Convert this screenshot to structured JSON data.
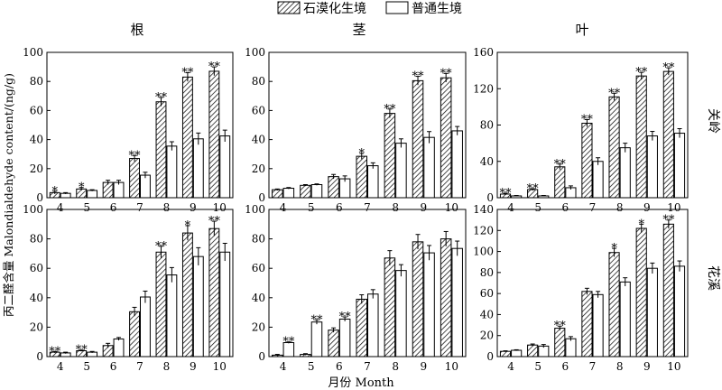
{
  "figure": {
    "ylabel": "丙二醛含量 Malondialdehyde content/(ng/g)",
    "xlabel": "月份  Month"
  },
  "legend": {
    "items": [
      {
        "label": "石漠化生境",
        "pattern": "hatched"
      },
      {
        "label": "普通生境",
        "pattern": "white"
      }
    ]
  },
  "chart_data": [
    {
      "type": "bar",
      "column": "根",
      "row": "关岭",
      "categories": [
        "4",
        "5",
        "6",
        "7",
        "8",
        "9",
        "10"
      ],
      "ylim": [
        0,
        100
      ],
      "yticks": [
        0,
        20,
        40,
        60,
        80,
        100
      ],
      "series": [
        {
          "name": "石漠化生境",
          "values": [
            3.5,
            6,
            10.5,
            27,
            66,
            83,
            87
          ],
          "errors": [
            1,
            1,
            1.5,
            2,
            3,
            3,
            3
          ]
        },
        {
          "name": "普通生境",
          "values": [
            3,
            5,
            10.5,
            15.5,
            35.5,
            40.5,
            42.5
          ],
          "errors": [
            0.5,
            0.5,
            1.5,
            2,
            3,
            4,
            4
          ]
        }
      ],
      "significance": [
        "*",
        "*",
        "",
        "**",
        "**",
        "**",
        "**"
      ]
    },
    {
      "type": "bar",
      "column": "茎",
      "row": "关岭",
      "categories": [
        "4",
        "5",
        "6",
        "7",
        "8",
        "9",
        "10"
      ],
      "ylim": [
        0,
        100
      ],
      "yticks": [
        0,
        20,
        40,
        60,
        80,
        100
      ],
      "series": [
        {
          "name": "石漠化生境",
          "values": [
            5.5,
            8.5,
            14.5,
            28.5,
            58,
            80.5,
            82.5
          ],
          "errors": [
            0.5,
            0.5,
            1.5,
            2,
            3,
            3,
            3
          ]
        },
        {
          "name": "普通生境",
          "values": [
            6.5,
            9,
            13,
            22,
            37.5,
            41.5,
            46
          ],
          "errors": [
            0.5,
            0.5,
            2,
            2,
            3,
            4,
            3
          ]
        }
      ],
      "significance": [
        "",
        "",
        "",
        "*",
        "**",
        "**",
        "**"
      ]
    },
    {
      "type": "bar",
      "column": "叶",
      "row": "关岭",
      "categories": [
        "4",
        "5",
        "6",
        "7",
        "8",
        "9",
        "10"
      ],
      "ylim": [
        0,
        160
      ],
      "yticks": [
        0,
        40,
        80,
        120,
        160
      ],
      "series": [
        {
          "name": "石漠化生境",
          "values": [
            4,
            9,
            34,
            82,
            111,
            134,
            139
          ],
          "errors": [
            1,
            1,
            3,
            4,
            4,
            4,
            4
          ]
        },
        {
          "name": "普通生境",
          "values": [
            2,
            2,
            11,
            40,
            55,
            68,
            71
          ],
          "errors": [
            0.5,
            0.5,
            2,
            4,
            5,
            5,
            5
          ]
        }
      ],
      "significance": [
        "**",
        "**",
        "**",
        "**",
        "**",
        "**",
        "**"
      ]
    },
    {
      "type": "bar",
      "column": "根",
      "row": "花溪",
      "categories": [
        "4",
        "5",
        "6",
        "7",
        "8",
        "9",
        "10"
      ],
      "ylim": [
        0,
        100
      ],
      "yticks": [
        0,
        20,
        40,
        60,
        80,
        100
      ],
      "series": [
        {
          "name": "石漠化生境",
          "values": [
            3,
            4,
            7.5,
            30.5,
            71,
            84,
            87
          ],
          "errors": [
            0.5,
            0.5,
            1.5,
            3,
            4,
            5,
            5
          ]
        },
        {
          "name": "普通生境",
          "values": [
            2.5,
            3,
            12,
            40.5,
            55.5,
            68,
            71
          ],
          "errors": [
            0.5,
            0.5,
            1,
            4,
            5,
            6,
            6
          ]
        }
      ],
      "significance": [
        "**",
        "**",
        "",
        "",
        "**",
        "*",
        "**"
      ]
    },
    {
      "type": "bar",
      "column": "茎",
      "row": "花溪",
      "categories": [
        "4",
        "5",
        "6",
        "7",
        "8",
        "9",
        "10"
      ],
      "ylim": [
        0,
        100
      ],
      "yticks": [
        0,
        20,
        40,
        60,
        80,
        100
      ],
      "series": [
        {
          "name": "石漠化生境",
          "values": [
            1,
            1.5,
            18,
            39,
            67,
            78,
            80
          ],
          "errors": [
            0.5,
            0.5,
            1.5,
            3,
            5,
            5,
            5
          ]
        },
        {
          "name": "普通生境",
          "values": [
            9.5,
            23.5,
            25.5,
            42.5,
            58.5,
            70.5,
            73.5
          ],
          "errors": [
            0.5,
            1.5,
            1.5,
            3,
            4,
            5,
            5
          ]
        }
      ],
      "significance": [
        "**",
        "**",
        "**",
        "",
        "",
        "",
        ""
      ]
    },
    {
      "type": "bar",
      "column": "叶",
      "row": "花溪",
      "categories": [
        "4",
        "5",
        "6",
        "7",
        "8",
        "9",
        "10"
      ],
      "ylim": [
        0,
        140
      ],
      "yticks": [
        0,
        20,
        40,
        60,
        80,
        100,
        120,
        140
      ],
      "series": [
        {
          "name": "石漠化生境",
          "values": [
            5,
            11,
            27,
            62,
            99,
            122,
            126
          ],
          "errors": [
            0.5,
            1,
            2,
            3,
            4,
            4,
            4
          ]
        },
        {
          "name": "普通生境",
          "values": [
            6,
            10,
            17,
            59,
            71,
            84,
            86
          ],
          "errors": [
            0.5,
            1.5,
            2,
            3,
            4,
            5,
            5
          ]
        }
      ],
      "significance": [
        "",
        "",
        "**",
        "",
        "*",
        "*",
        "**"
      ]
    }
  ]
}
